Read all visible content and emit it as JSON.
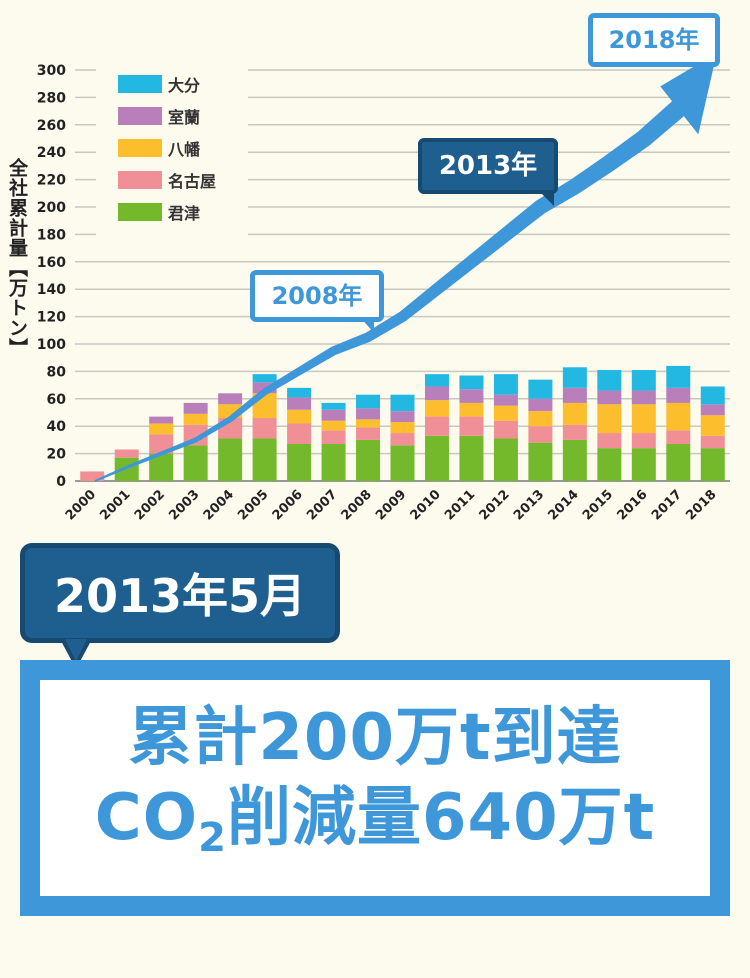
{
  "chart_data": {
    "type": "bar",
    "stacked": true,
    "ylabel": "全社累計量【万トン】",
    "ylim": [
      0,
      300
    ],
    "yticks": [
      0,
      20,
      40,
      60,
      80,
      100,
      120,
      140,
      160,
      180,
      200,
      220,
      240,
      260,
      280,
      300
    ],
    "grid": true,
    "legend_position": "top-left",
    "categories": [
      "2000",
      "2001",
      "2002",
      "2003",
      "2004",
      "2005",
      "2006",
      "2007",
      "2008",
      "2009",
      "2010",
      "2011",
      "2012",
      "2013",
      "2014",
      "2015",
      "2016",
      "2017",
      "2018"
    ],
    "series": [
      {
        "name": "君津",
        "color": "#74b92b",
        "values": [
          0,
          17,
          20,
          26,
          31,
          31,
          27,
          27,
          30,
          26,
          33,
          33,
          31,
          28,
          30,
          24,
          24,
          27,
          24
        ]
      },
      {
        "name": "名古屋",
        "color": "#f08f95",
        "values": [
          7,
          6,
          14,
          15,
          15,
          15,
          15,
          10,
          9,
          9,
          14,
          14,
          13,
          12,
          11,
          11,
          11,
          10,
          9
        ]
      },
      {
        "name": "八幡",
        "color": "#fcbe2c",
        "values": [
          0,
          0,
          8,
          8,
          10,
          18,
          10,
          7,
          6,
          8,
          12,
          10,
          11,
          11,
          16,
          21,
          21,
          20,
          15
        ]
      },
      {
        "name": "室蘭",
        "color": "#b97fbb",
        "values": [
          0,
          0,
          5,
          8,
          8,
          8,
          9,
          8,
          8,
          8,
          10,
          10,
          8,
          9,
          11,
          10,
          10,
          11,
          8
        ]
      },
      {
        "name": "大分",
        "color": "#22b8e2",
        "values": [
          0,
          0,
          0,
          0,
          0,
          6,
          7,
          5,
          10,
          12,
          9,
          10,
          15,
          14,
          15,
          15,
          15,
          16,
          13
        ]
      }
    ],
    "cumulative_trend": {
      "color": "#3d97d8",
      "x": [
        "2000",
        "2001",
        "2002",
        "2003",
        "2004",
        "2005",
        "2006",
        "2007",
        "2008",
        "2009",
        "2010",
        "2011",
        "2012",
        "2013",
        "2014",
        "2015",
        "2016",
        "2017",
        "2018"
      ],
      "values": [
        0,
        10,
        20,
        30,
        45,
        65,
        80,
        95,
        105,
        120,
        140,
        160,
        180,
        200,
        215,
        232,
        250,
        272,
        292
      ]
    }
  },
  "callouts": {
    "y2008": "2008年",
    "y2013": "2013年",
    "y2018": "2018年"
  },
  "highlight": {
    "date": "2013年5月",
    "line1": "累計200万t到達",
    "line2_prefix": "CO",
    "line2_sub": "2",
    "line2_suffix": "削減量640万t"
  }
}
